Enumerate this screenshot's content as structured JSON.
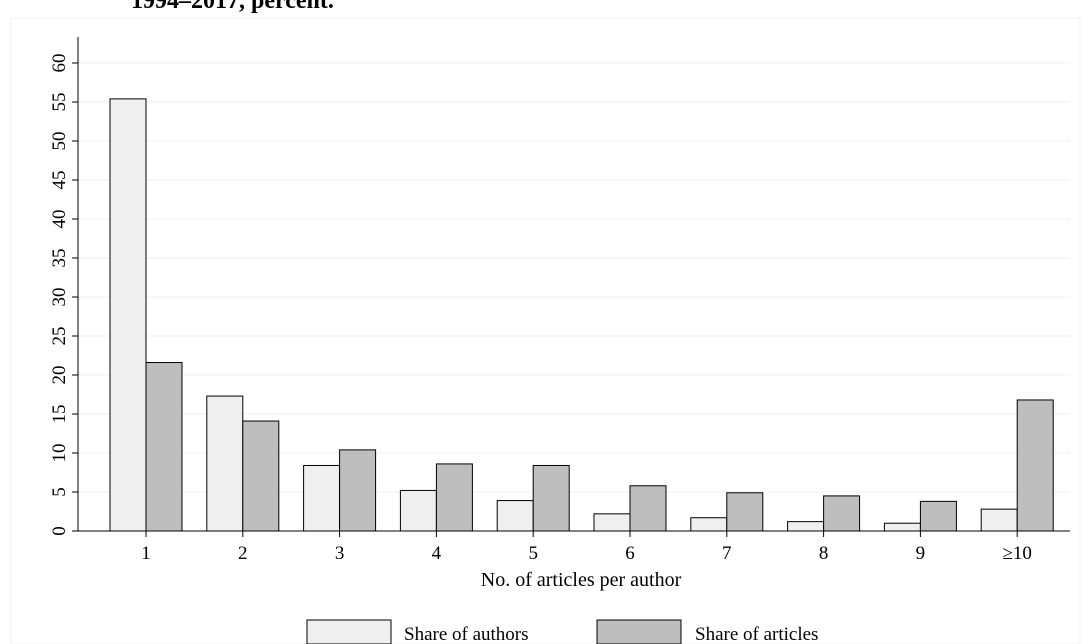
{
  "chart_data": {
    "type": "bar",
    "title": "1994–2017, percent.",
    "xlabel": "No. of articles per author",
    "ylabel": "",
    "categories": [
      "1",
      "2",
      "3",
      "4",
      "5",
      "6",
      "7",
      "8",
      "9",
      "≥10"
    ],
    "series": [
      {
        "name": "Share of authors",
        "color": "#efefef",
        "values": [
          55.4,
          17.3,
          8.4,
          5.2,
          3.9,
          2.2,
          1.7,
          1.2,
          1.0,
          2.8
        ]
      },
      {
        "name": "Share of articles",
        "color": "#bebebe",
        "values": [
          21.6,
          14.1,
          10.4,
          8.6,
          8.4,
          5.8,
          4.9,
          4.5,
          3.8,
          16.8
        ]
      }
    ],
    "yticks": [
      "0",
      "5",
      "10",
      "15",
      "20",
      "25",
      "30",
      "35",
      "40",
      "45",
      "50",
      "55",
      "60"
    ],
    "ylim": [
      0,
      60
    ],
    "grid": true,
    "legend": "bottom"
  }
}
